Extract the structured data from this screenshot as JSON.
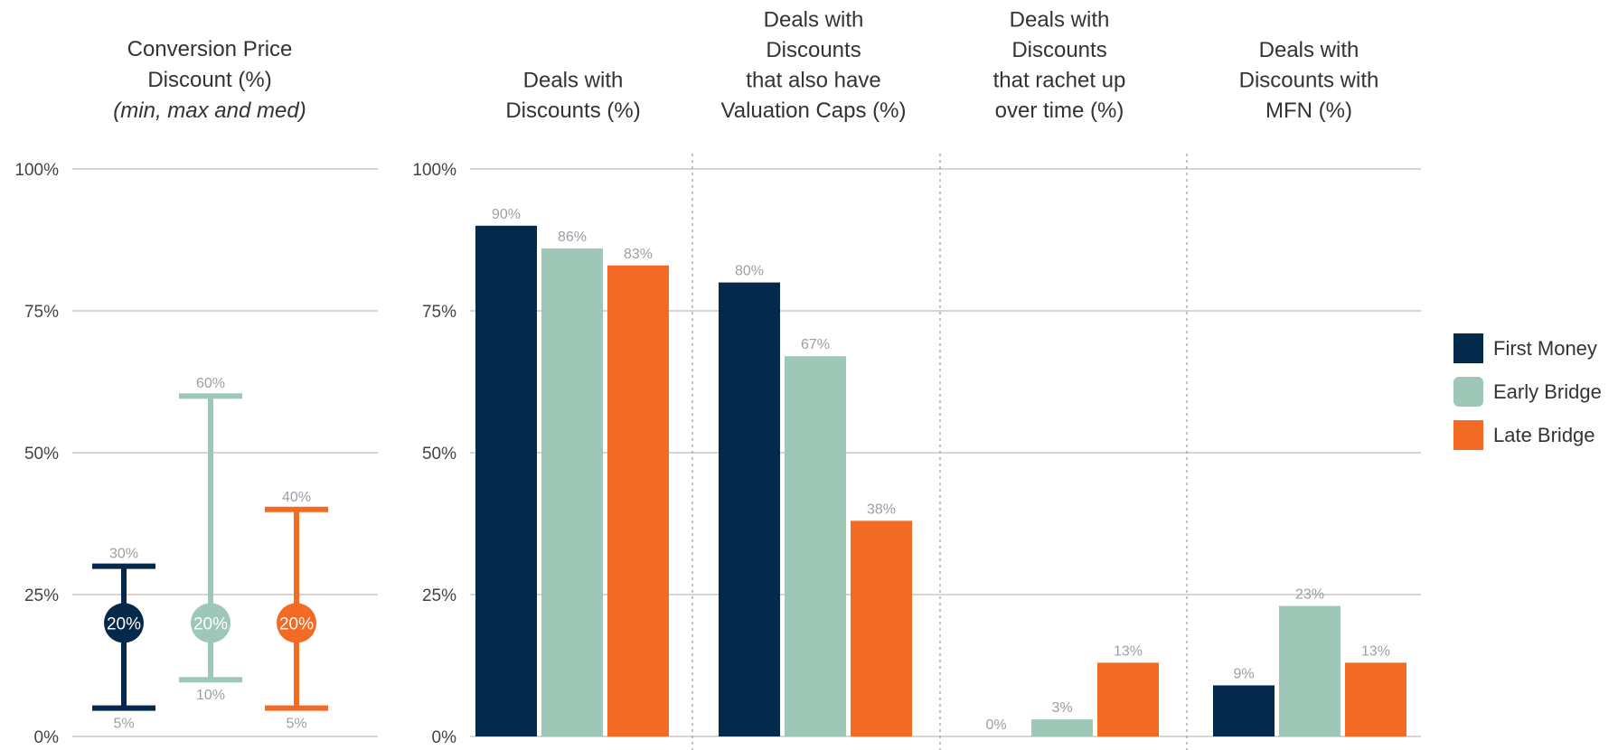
{
  "colors": {
    "First Money": "#04294a",
    "Early Bridge": "#9ec7b8",
    "Late Bridge": "#f26a24",
    "grid": "#bdbdbd"
  },
  "legend": [
    "First Money",
    "Early Bridge",
    "Late Bridge"
  ],
  "chart_data": [
    {
      "type": "range",
      "title": [
        "Conversion Price",
        "Discount (%)",
        "(min, max and med)"
      ],
      "ylim": [
        0,
        100
      ],
      "yticks": [
        "100%",
        "75%",
        "50%",
        "25%",
        "0%"
      ],
      "series": [
        {
          "name": "First Money",
          "min": 5,
          "max": 30,
          "med": 20,
          "min_label": "5%",
          "max_label": "30%",
          "med_label": "20%"
        },
        {
          "name": "Early Bridge",
          "min": 10,
          "max": 60,
          "med": 20,
          "min_label": "10%",
          "max_label": "60%",
          "med_label": "20%"
        },
        {
          "name": "Late Bridge",
          "min": 5,
          "max": 40,
          "med": 20,
          "min_label": "5%",
          "max_label": "40%",
          "med_label": "20%"
        }
      ]
    },
    {
      "type": "bar",
      "ylim": [
        0,
        100
      ],
      "yticks": [
        "100%",
        "75%",
        "50%",
        "25%",
        "0%"
      ],
      "categories": [
        [
          "Deals with",
          "Discounts (%)"
        ],
        [
          "Deals with",
          "Discounts",
          "that also have",
          "Valuation Caps (%)"
        ],
        [
          "Deals with",
          "Discounts",
          "that rachet up",
          "over time (%)"
        ],
        [
          "Deals with",
          "Discounts with",
          "MFN (%)"
        ]
      ],
      "series": [
        {
          "name": "First Money",
          "values": [
            90,
            80,
            0,
            9
          ],
          "labels": [
            "90%",
            "80%",
            "0%",
            "9%"
          ]
        },
        {
          "name": "Early Bridge",
          "values": [
            86,
            67,
            3,
            23
          ],
          "labels": [
            "86%",
            "67%",
            "3%",
            "23%"
          ]
        },
        {
          "name": "Late Bridge",
          "values": [
            83,
            38,
            13,
            13
          ],
          "labels": [
            "83%",
            "38%",
            "13%",
            "13%"
          ]
        }
      ]
    }
  ]
}
